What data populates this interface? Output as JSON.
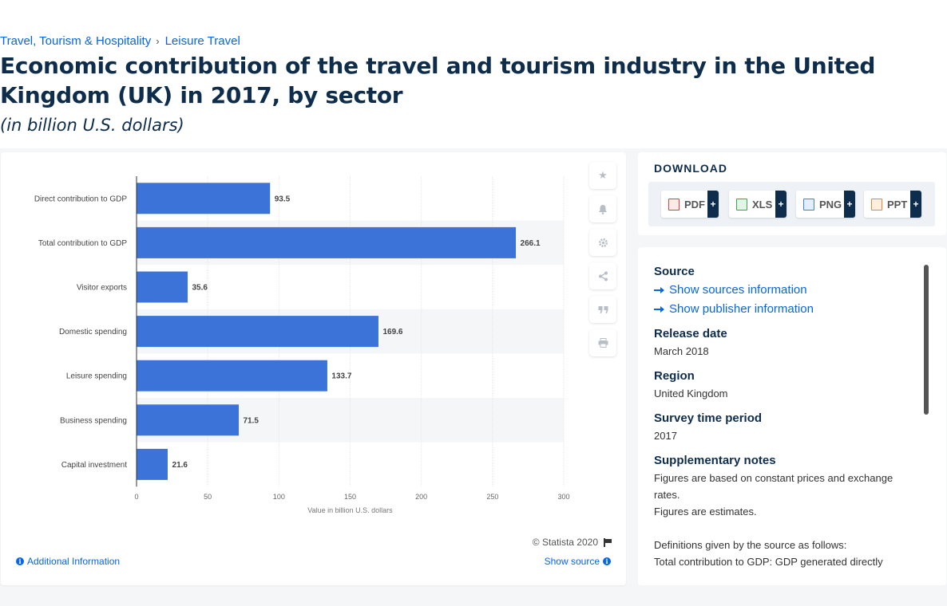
{
  "breadcrumb": {
    "parent": "Travel, Tourism & Hospitality",
    "current": "Leisure Travel"
  },
  "title": "Economic contribution of the travel and tourism industry in the United Kingdom (UK) in 2017, by sector",
  "subtitle": "(in billion U.S. dollars)",
  "chart_data": {
    "type": "bar",
    "orientation": "horizontal",
    "categories": [
      "Direct contribution to GDP",
      "Total contribution to GDP",
      "Visitor exports",
      "Domestic spending",
      "Leisure spending",
      "Business spending",
      "Capital investment"
    ],
    "values": [
      93.5,
      266.1,
      35.6,
      169.6,
      133.7,
      71.5,
      21.6
    ],
    "value_labels": [
      "93.5",
      "266.1",
      "35.6",
      "169.6",
      "133.7",
      "71.5",
      "21.6"
    ],
    "xlabel": "Value in billion U.S. dollars",
    "xlim": [
      0,
      300
    ],
    "xticks": [
      "0",
      "50",
      "100",
      "150",
      "200",
      "250",
      "300"
    ],
    "bar_color": "#3b73d9",
    "grid": true
  },
  "tools": [
    "star-icon",
    "bell-icon",
    "gear-icon",
    "share-icon",
    "quote-icon",
    "print-icon"
  ],
  "copyright": "© Statista 2020",
  "additional_info": "Additional Information",
  "show_source": "Show source",
  "download": {
    "title": "DOWNLOAD",
    "buttons": [
      {
        "label": "PDF",
        "color": "#d9453b"
      },
      {
        "label": "XLS",
        "color": "#3fa34d"
      },
      {
        "label": "PNG",
        "color": "#3a86d9"
      },
      {
        "label": "PPT",
        "color": "#e58a2e"
      }
    ],
    "plus": "+"
  },
  "meta": {
    "source_heading": "Source",
    "show_sources": "Show sources information",
    "show_publisher": "Show publisher information",
    "release_heading": "Release date",
    "release_value": "March 2018",
    "region_heading": "Region",
    "region_value": "United Kingdom",
    "survey_heading": "Survey time period",
    "survey_value": "2017",
    "notes_heading": "Supplementary notes",
    "notes_1": "Figures are based on constant prices and exchange rates.",
    "notes_2": "Figures are estimates.",
    "notes_3": "Definitions given by the source as follows:",
    "notes_4": "Total contribution to GDP: GDP generated directly"
  }
}
